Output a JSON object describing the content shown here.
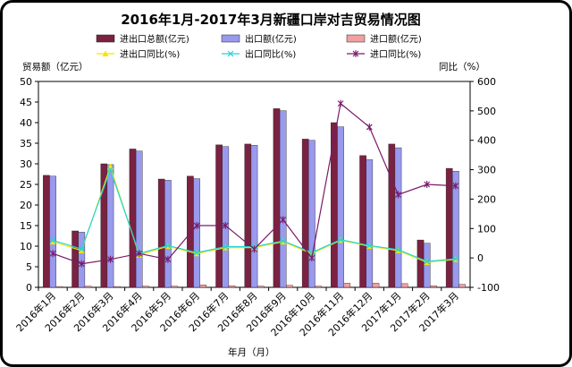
{
  "chart_data": {
    "type": "bar",
    "title": "2016年1月-2017年3月新疆口岸对吉贸易情况图",
    "xlabel": "年月（月）",
    "ylabel": "贸易额（亿元）",
    "y2label": "同比（%）",
    "ylim": [
      0,
      50
    ],
    "y2lim": [
      -100,
      600
    ],
    "yticks": [
      "0",
      "5",
      "10",
      "15",
      "20",
      "25",
      "30",
      "35",
      "40",
      "45",
      "50"
    ],
    "y2ticks": [
      "-100",
      "0",
      "100",
      "200",
      "300",
      "400",
      "500",
      "600"
    ],
    "categories": [
      "2016年1月",
      "2016年2月",
      "2016年3月",
      "2016年4月",
      "2016年5月",
      "2016年6月",
      "2016年7月",
      "2016年8月",
      "2016年9月",
      "2016年10月",
      "2016年11月",
      "2016年12月",
      "2017年1月",
      "2017年2月",
      "2017年3月"
    ],
    "bar_series": [
      {
        "name": "进出口总额(亿元)",
        "color": "#7b2142",
        "values": [
          27.2,
          13.7,
          30.0,
          33.6,
          26.3,
          27.0,
          34.6,
          34.8,
          43.4,
          36.0,
          40.0,
          32.0,
          34.8,
          11.5,
          28.9
        ]
      },
      {
        "name": "出口额(亿元)",
        "color": "#9999ee",
        "values": [
          27.0,
          13.4,
          29.8,
          33.1,
          26.0,
          26.4,
          34.2,
          34.5,
          42.9,
          35.7,
          39.0,
          31.0,
          33.9,
          10.7,
          28.2
        ]
      },
      {
        "name": "进口额(亿元)",
        "color": "#f2a0a0",
        "values": [
          0.2,
          0.3,
          0.2,
          0.3,
          0.3,
          0.6,
          0.4,
          0.3,
          0.5,
          0.3,
          1.0,
          1.0,
          0.9,
          0.4,
          0.7
        ]
      }
    ],
    "line_series": [
      {
        "name": "进出口同比(%)",
        "color": "#f5e600",
        "marker": "triangle",
        "values": [
          55,
          25,
          310,
          10,
          40,
          15,
          35,
          35,
          55,
          15,
          60,
          40,
          25,
          -15,
          -5
        ]
      },
      {
        "name": "出口同比(%)",
        "color": "#22d3d8",
        "marker": "x",
        "values": [
          60,
          30,
          300,
          15,
          42,
          18,
          38,
          38,
          58,
          18,
          62,
          42,
          28,
          -12,
          -3
        ]
      },
      {
        "name": "进口同比(%)",
        "color": "#7a1a6a",
        "marker": "asterisk",
        "values": [
          15,
          -20,
          -5,
          15,
          -5,
          110,
          110,
          30,
          130,
          0,
          525,
          445,
          215,
          250,
          245
        ]
      }
    ],
    "legend_position": "top"
  }
}
